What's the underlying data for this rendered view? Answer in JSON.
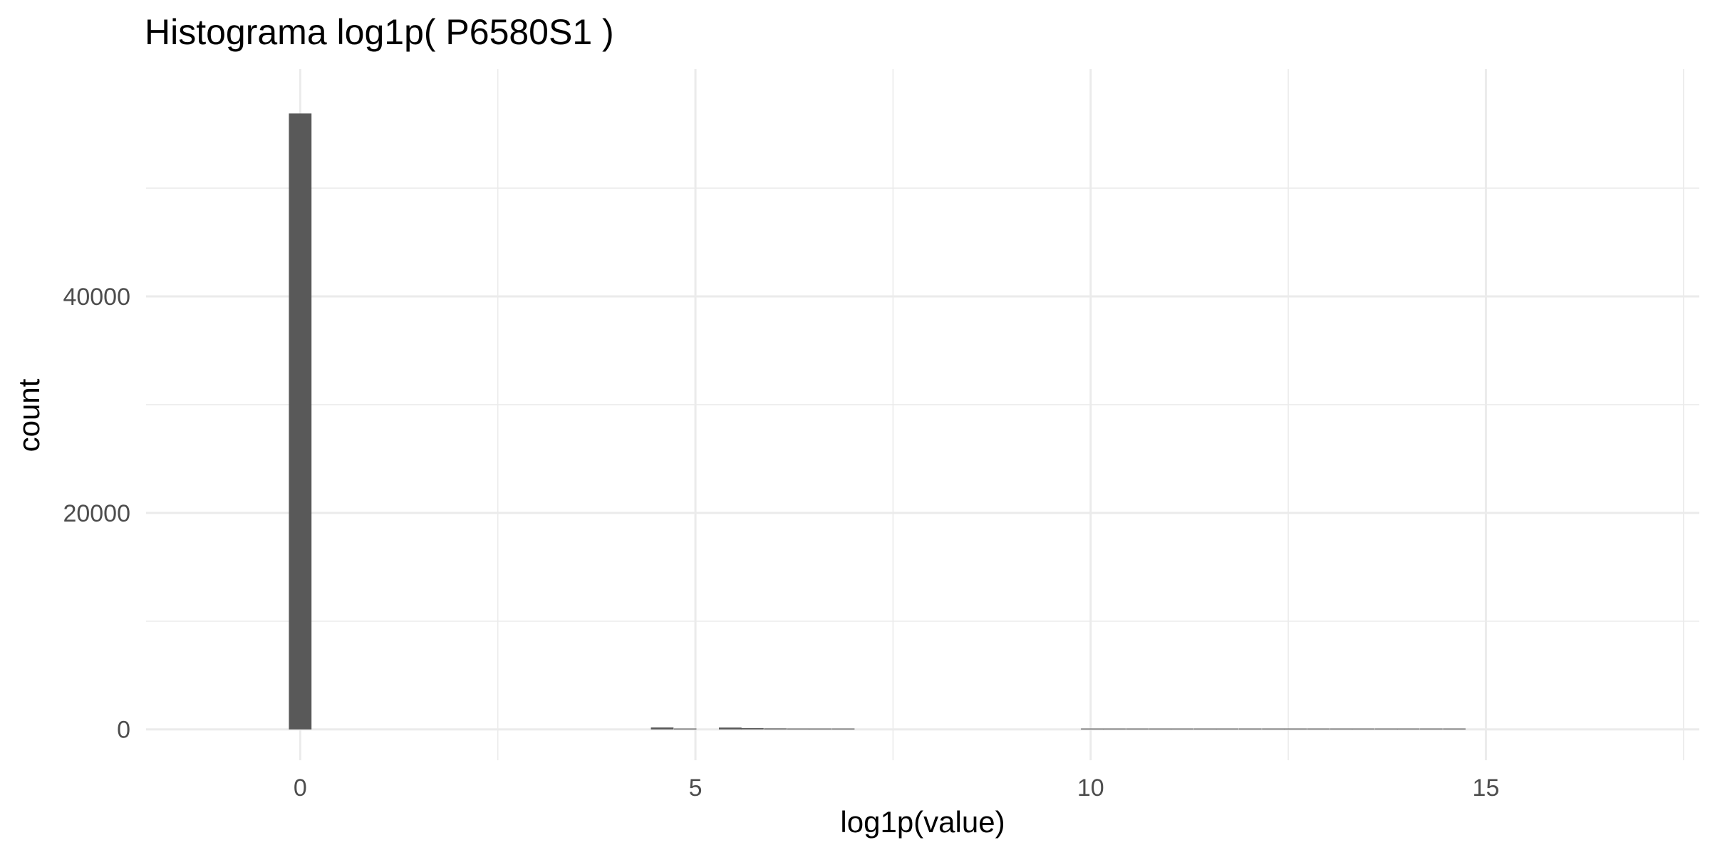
{
  "chart_data": {
    "type": "bar",
    "title": "Histograma log1p( P6580S1 )",
    "xlabel": "log1p(value)",
    "ylabel": "count",
    "xlim": [
      -1.95,
      17.7
    ],
    "ylim": [
      -2850,
      61000
    ],
    "x_ticks": [
      0,
      5,
      10,
      15
    ],
    "x_tick_labels": [
      "0",
      "5",
      "10",
      "15"
    ],
    "y_ticks": [
      0,
      20000,
      40000
    ],
    "y_tick_labels": [
      "0",
      "20000",
      "40000"
    ],
    "grid": true,
    "bin_width": 0.286,
    "bar_color": "#595959",
    "bins": [
      {
        "x": 0.0,
        "count": 56900
      },
      {
        "x": 4.58,
        "count": 180
      },
      {
        "x": 4.87,
        "count": 60
      },
      {
        "x": 5.44,
        "count": 170
      },
      {
        "x": 5.72,
        "count": 120
      },
      {
        "x": 6.01,
        "count": 90
      },
      {
        "x": 6.3,
        "count": 80
      },
      {
        "x": 6.58,
        "count": 70
      },
      {
        "x": 6.87,
        "count": 40
      },
      {
        "x": 10.02,
        "count": 20
      },
      {
        "x": 10.3,
        "count": 25
      },
      {
        "x": 10.59,
        "count": 30
      },
      {
        "x": 10.88,
        "count": 30
      },
      {
        "x": 11.16,
        "count": 35
      },
      {
        "x": 11.45,
        "count": 40
      },
      {
        "x": 11.73,
        "count": 35
      },
      {
        "x": 12.02,
        "count": 60
      },
      {
        "x": 12.31,
        "count": 40
      },
      {
        "x": 12.59,
        "count": 35
      },
      {
        "x": 12.88,
        "count": 30
      },
      {
        "x": 13.17,
        "count": 25
      },
      {
        "x": 13.45,
        "count": 25
      },
      {
        "x": 13.74,
        "count": 20
      },
      {
        "x": 14.02,
        "count": 20
      },
      {
        "x": 14.31,
        "count": 15
      },
      {
        "x": 14.6,
        "count": 15
      }
    ]
  }
}
